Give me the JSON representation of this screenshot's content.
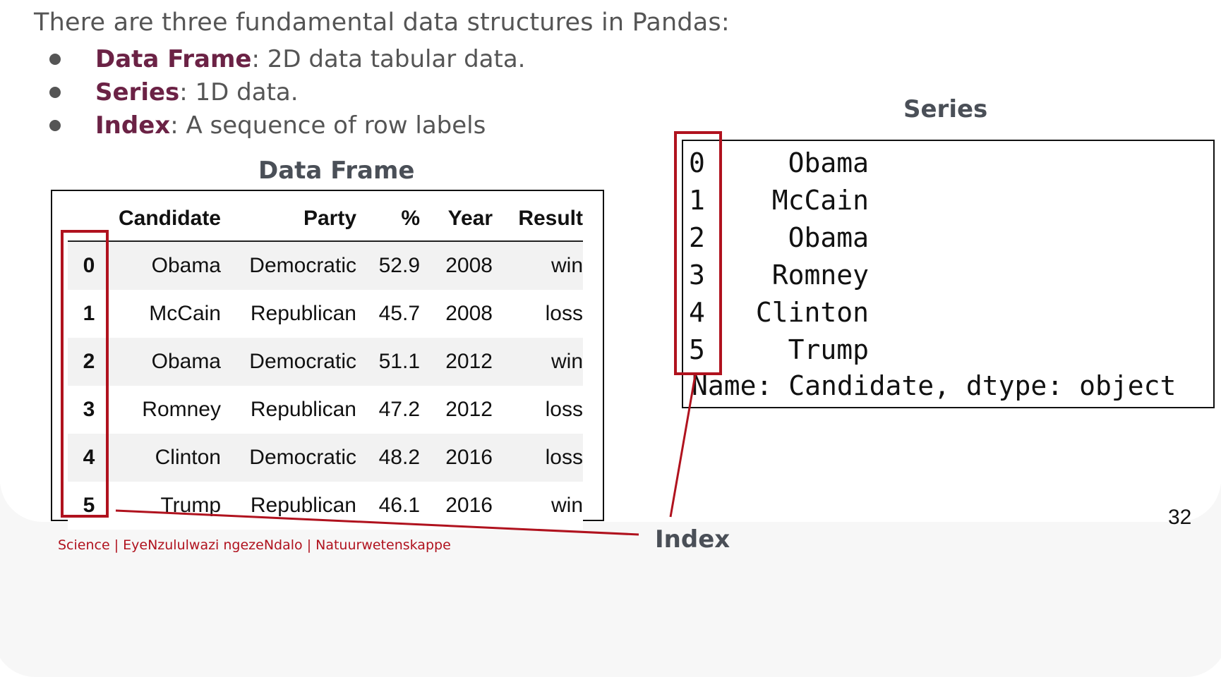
{
  "intro": "There are three fundamental data structures in Pandas:",
  "bullets": [
    {
      "term": "Data Frame",
      "desc": ": 2D data tabular data."
    },
    {
      "term": "Series",
      "desc": ": 1D data."
    },
    {
      "term": "Index",
      "desc": ": A sequence of row labels"
    }
  ],
  "dataframe": {
    "caption": "Data Frame",
    "columns": [
      "",
      "Candidate",
      "Party",
      "%",
      "Year",
      "Result"
    ],
    "rows": [
      [
        "0",
        "Obama",
        "Democratic",
        "52.9",
        "2008",
        "win"
      ],
      [
        "1",
        "McCain",
        "Republican",
        "45.7",
        "2008",
        "loss"
      ],
      [
        "2",
        "Obama",
        "Democratic",
        "51.1",
        "2012",
        "win"
      ],
      [
        "3",
        "Romney",
        "Republican",
        "47.2",
        "2012",
        "loss"
      ],
      [
        "4",
        "Clinton",
        "Democratic",
        "48.2",
        "2016",
        "loss"
      ],
      [
        "5",
        "Trump",
        "Republican",
        "46.1",
        "2016",
        "win"
      ]
    ]
  },
  "series": {
    "caption": "Series",
    "items": [
      {
        "index": "0",
        "value": "Obama"
      },
      {
        "index": "1",
        "value": "McCain"
      },
      {
        "index": "2",
        "value": "Obama"
      },
      {
        "index": "3",
        "value": "Romney"
      },
      {
        "index": "4",
        "value": "Clinton"
      },
      {
        "index": "5",
        "value": "Trump"
      }
    ],
    "footer": "Name: Candidate, dtype: object"
  },
  "index_label": "Index",
  "footer_text": "Science | EyeNzululwazi ngezeNdalo | Natuurwetenskappe",
  "page_number": "32",
  "colors": {
    "accent": "#6b2245",
    "highlight": "#b0121e",
    "text": "#555555"
  }
}
